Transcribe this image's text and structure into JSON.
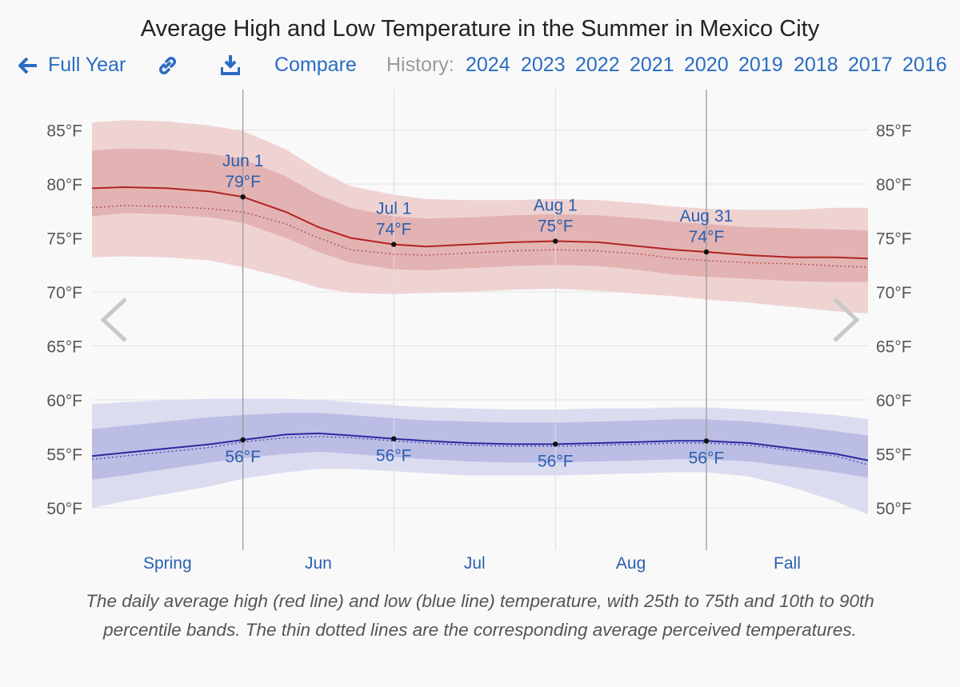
{
  "header": {
    "title": "Average High and Low Temperature in the Summer in Mexico City",
    "full_year": "Full Year",
    "compare": "Compare",
    "history_label": "History:",
    "years": [
      "2024",
      "2023",
      "2022",
      "2021",
      "2020",
      "2019",
      "2018",
      "2017",
      "2016"
    ]
  },
  "icons": {
    "back": "arrow-left-icon",
    "link": "link-icon",
    "download": "download-icon",
    "prev": "chevron-left-icon",
    "next": "chevron-right-icon"
  },
  "caption": "The daily average high (red line) and low (blue line) temperature, with 25th to 75th and 10th to 90th percentile bands. The thin dotted lines are the corresponding average perceived temperatures.",
  "chart_data": {
    "type": "line",
    "title": "Average High and Low Temperature in the Summer in Mexico City",
    "y_ticks": [
      "50°F",
      "55°F",
      "60°F",
      "65°F",
      "70°F",
      "75°F",
      "80°F",
      "85°F"
    ],
    "ylim": [
      47,
      87
    ],
    "day_range": [
      -21,
      51
    ],
    "season_labels": [
      {
        "label": "Spring",
        "from": -21,
        "to": -7
      },
      {
        "label": "Jun",
        "from": -7,
        "to": 7
      },
      {
        "label": "Jul",
        "from": 7,
        "to": 22
      },
      {
        "label": "Aug",
        "from": 22,
        "to": 36
      },
      {
        "label": "Fall",
        "from": 36,
        "to": 51
      }
    ],
    "grid_days": [
      -7,
      7,
      22,
      36
    ],
    "markers": [
      {
        "day": -7,
        "date": "Jun 1",
        "high": "79°F",
        "high_value": 78.8,
        "low": "56°F",
        "low_value": 56.3
      },
      {
        "day": 7,
        "date": "Jul 1",
        "high": "74°F",
        "high_value": 74.4,
        "low": "56°F",
        "low_value": 56.4
      },
      {
        "day": 22,
        "date": "Aug 1",
        "high": "75°F",
        "high_value": 74.7,
        "low": "56°F",
        "low_value": 55.9
      },
      {
        "day": 36,
        "date": "Aug 31",
        "high": "74°F",
        "high_value": 73.7,
        "low": "56°F",
        "low_value": 56.2
      }
    ],
    "series": {
      "day": [
        -21,
        -18,
        -14,
        -10,
        -7,
        -3,
        0,
        3,
        7,
        10,
        14,
        18,
        22,
        26,
        30,
        33,
        36,
        40,
        44,
        48,
        51
      ],
      "high": [
        79.6,
        79.7,
        79.6,
        79.3,
        78.8,
        77.4,
        76.0,
        75.0,
        74.4,
        74.2,
        74.4,
        74.6,
        74.7,
        74.6,
        74.2,
        73.9,
        73.7,
        73.4,
        73.2,
        73.2,
        73.1
      ],
      "high_feels": [
        77.8,
        78.0,
        77.9,
        77.7,
        77.4,
        76.3,
        75.0,
        73.9,
        73.5,
        73.4,
        73.6,
        73.8,
        73.9,
        73.8,
        73.5,
        73.1,
        72.9,
        72.7,
        72.6,
        72.4,
        72.3
      ],
      "high_p25": [
        77.0,
        77.3,
        77.2,
        76.9,
        76.4,
        75.0,
        73.7,
        72.7,
        72.1,
        72.0,
        72.2,
        72.4,
        72.5,
        72.4,
        72.0,
        71.6,
        71.4,
        71.2,
        71.0,
        70.9,
        70.9
      ],
      "high_p75": [
        83.1,
        83.3,
        83.2,
        82.8,
        82.3,
        80.7,
        79.0,
        77.8,
        77.0,
        76.8,
        76.9,
        77.1,
        77.2,
        77.1,
        76.8,
        76.5,
        76.3,
        76.0,
        75.9,
        75.8,
        75.7
      ],
      "high_p10": [
        73.2,
        73.3,
        73.2,
        72.9,
        72.3,
        71.3,
        70.4,
        69.9,
        69.8,
        69.9,
        70.0,
        70.2,
        70.3,
        70.1,
        69.8,
        69.6,
        69.3,
        69.0,
        68.6,
        68.2,
        68.0
      ],
      "high_p90": [
        85.7,
        85.9,
        85.8,
        85.4,
        84.9,
        83.2,
        81.3,
        79.8,
        79.0,
        78.6,
        78.5,
        78.5,
        78.6,
        78.5,
        78.2,
        77.9,
        77.7,
        77.6,
        77.6,
        77.8,
        77.8
      ],
      "low": [
        54.8,
        55.1,
        55.5,
        55.9,
        56.3,
        56.8,
        56.9,
        56.7,
        56.4,
        56.2,
        56.0,
        55.9,
        55.9,
        56.0,
        56.1,
        56.2,
        56.2,
        56.0,
        55.5,
        55.0,
        54.4
      ],
      "low_feels": [
        54.5,
        54.8,
        55.2,
        55.6,
        56.1,
        56.5,
        56.6,
        56.5,
        56.2,
        56.0,
        55.8,
        55.7,
        55.7,
        55.8,
        55.9,
        56.0,
        56.0,
        55.8,
        55.3,
        54.8,
        54.0
      ],
      "low_p25": [
        52.6,
        53.0,
        53.6,
        54.2,
        54.6,
        55.0,
        55.2,
        55.0,
        54.7,
        54.5,
        54.3,
        54.2,
        54.2,
        54.3,
        54.4,
        54.5,
        54.5,
        54.3,
        53.8,
        53.3,
        52.8
      ],
      "low_p75": [
        57.3,
        57.6,
        58.0,
        58.4,
        58.6,
        58.8,
        58.8,
        58.6,
        58.3,
        58.1,
        58.0,
        57.9,
        57.9,
        58.0,
        58.1,
        58.2,
        58.2,
        58.0,
        57.6,
        57.1,
        56.7
      ],
      "low_p10": [
        50.0,
        50.6,
        51.3,
        52.0,
        52.7,
        53.3,
        53.6,
        53.6,
        53.4,
        53.2,
        53.0,
        53.0,
        53.0,
        53.1,
        53.2,
        53.3,
        53.3,
        52.9,
        51.9,
        50.6,
        49.4
      ],
      "low_p90": [
        59.6,
        59.8,
        60.0,
        60.1,
        60.1,
        60.1,
        60.0,
        59.8,
        59.5,
        59.3,
        59.2,
        59.1,
        59.1,
        59.2,
        59.2,
        59.3,
        59.3,
        59.1,
        58.9,
        58.6,
        58.2
      ]
    }
  }
}
